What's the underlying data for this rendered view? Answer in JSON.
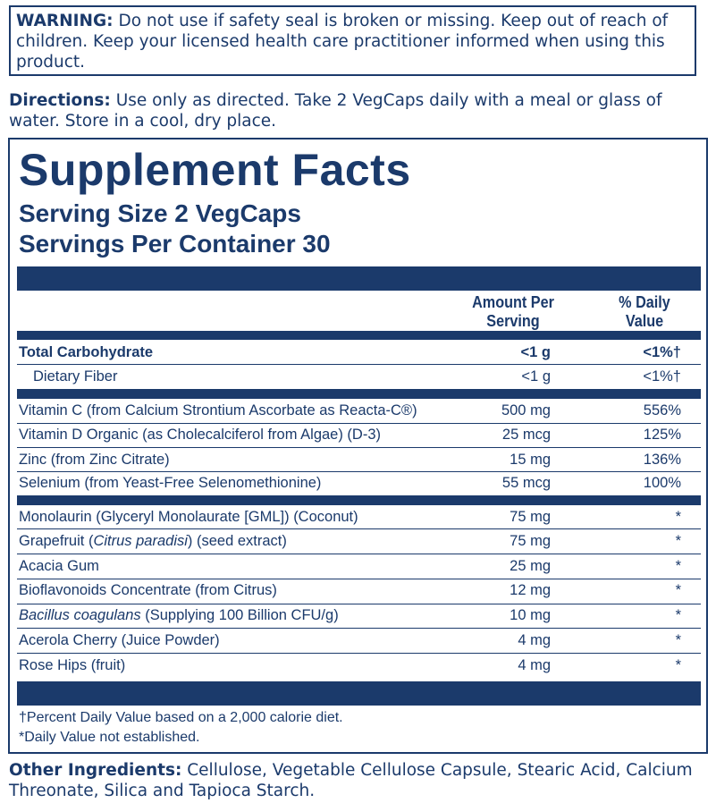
{
  "warning": {
    "label": "WARNING:",
    "text": " Do not use if safety seal is broken or missing. Keep out of reach of children. Keep your licensed health care practitioner informed when using this product."
  },
  "directions": {
    "label": "Directions:",
    "text": " Use only as directed. Take 2 VegCaps daily with a meal or glass of water. Store in a cool, dry place."
  },
  "facts": {
    "title": "Supplement Facts",
    "serving_size": "Serving Size 2 VegCaps",
    "servings_per_container": "Servings Per Container 30",
    "col_amount_1": "Amount Per",
    "col_amount_2": "Serving",
    "col_dv_1": "% Daily",
    "col_dv_2": "Value",
    "rows": [
      {
        "name": "Total Carbohydrate",
        "amount": "<1 g",
        "dv": "<1%†"
      },
      {
        "name": "Dietary Fiber",
        "amount": "<1 g",
        "dv": "<1%†"
      },
      {
        "name": "Vitamin C (from Calcium Strontium Ascorbate as Reacta-C®)",
        "amount": "500 mg",
        "dv": "556%"
      },
      {
        "name": "Vitamin D Organic (as Cholecalciferol from Algae) (D-3)",
        "amount": "25 mcg",
        "dv": "125%"
      },
      {
        "name": "Zinc (from Zinc Citrate)",
        "amount": "15 mg",
        "dv": "136%"
      },
      {
        "name": "Selenium (from Yeast-Free Selenomethionine)",
        "amount": "55 mcg",
        "dv": "100%"
      },
      {
        "name": "Monolaurin (Glyceryl Monolaurate [GML]) (Coconut)",
        "amount": "75 mg",
        "dv": "*"
      },
      {
        "name_a": "Grapefruit (",
        "name_i": "Citrus paradisi",
        "name_b": ") (seed extract)",
        "amount": "75 mg",
        "dv": "*"
      },
      {
        "name": "Acacia Gum",
        "amount": "25 mg",
        "dv": "*"
      },
      {
        "name": "Bioflavonoids Concentrate (from Citrus)",
        "amount": "12 mg",
        "dv": "*"
      },
      {
        "name_i": "Bacillus coagulans",
        "name_b": " (Supplying 100 Billion CFU/g)",
        "amount": "10 mg",
        "dv": "*"
      },
      {
        "name": "Acerola Cherry (Juice Powder)",
        "amount": "4 mg",
        "dv": "*"
      },
      {
        "name": "Rose Hips (fruit)",
        "amount": "4 mg",
        "dv": "*"
      }
    ],
    "footnote_1": "†Percent Daily Value based on a 2,000 calorie diet.",
    "footnote_2": "*Daily Value not established."
  },
  "other_ingredients": {
    "label": "Other Ingredients:",
    "text": " Cellulose, Vegetable Cellulose Capsule, Stearic Acid, Calcium Threonate, Silica and Tapioca Starch."
  }
}
